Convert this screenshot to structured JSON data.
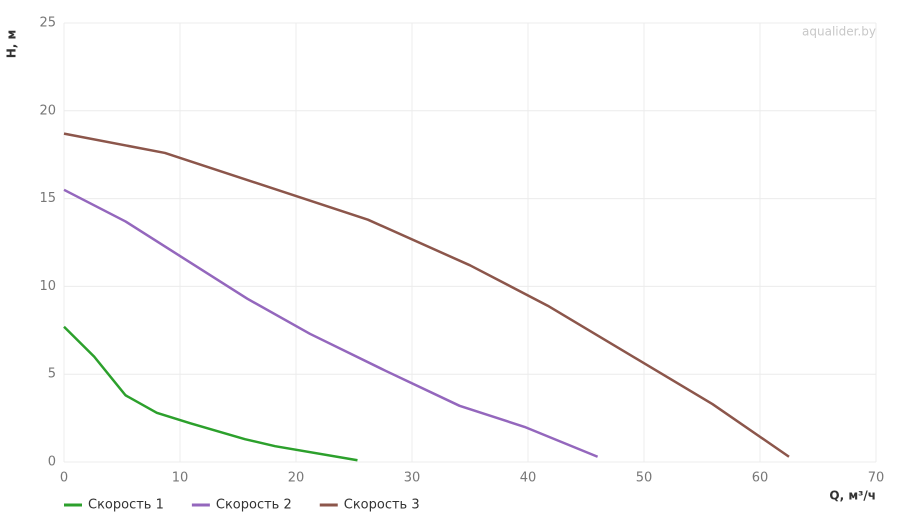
{
  "chart_data": {
    "type": "line",
    "watermark": "aqualider.by",
    "x_label": "Q, м³/ч",
    "y_label": "H, м",
    "xlim": [
      0,
      70
    ],
    "xticks": [
      0,
      10,
      20,
      30,
      40,
      50,
      60,
      70
    ],
    "ylim": [
      0,
      25
    ],
    "yticks": [
      0,
      5,
      10,
      15,
      20,
      25
    ],
    "grid": true,
    "legend": "bottom-left",
    "series": [
      {
        "name": "Скорость 1",
        "color": "#2ca02c",
        "x": [
          0,
          2.6,
          5.3,
          8.0,
          10.9,
          15.6,
          18.2,
          25.3
        ],
        "values": [
          7.7,
          6.0,
          3.8,
          2.8,
          2.2,
          1.3,
          0.9,
          0.1
        ]
      },
      {
        "name": "Скорость 2",
        "color": "#9467bd",
        "x": [
          0,
          5.3,
          15.8,
          21.2,
          27.7,
          34.1,
          39.7,
          46.0
        ],
        "values": [
          15.5,
          13.7,
          9.3,
          7.3,
          5.2,
          3.2,
          2.0,
          0.3
        ]
      },
      {
        "name": "Скорость 3",
        "color": "#8c564b",
        "x": [
          0,
          8.7,
          26.2,
          35.0,
          41.7,
          55.9,
          62.5
        ],
        "values": [
          18.7,
          17.6,
          13.8,
          11.2,
          8.9,
          3.3,
          0.3
        ]
      }
    ]
  }
}
